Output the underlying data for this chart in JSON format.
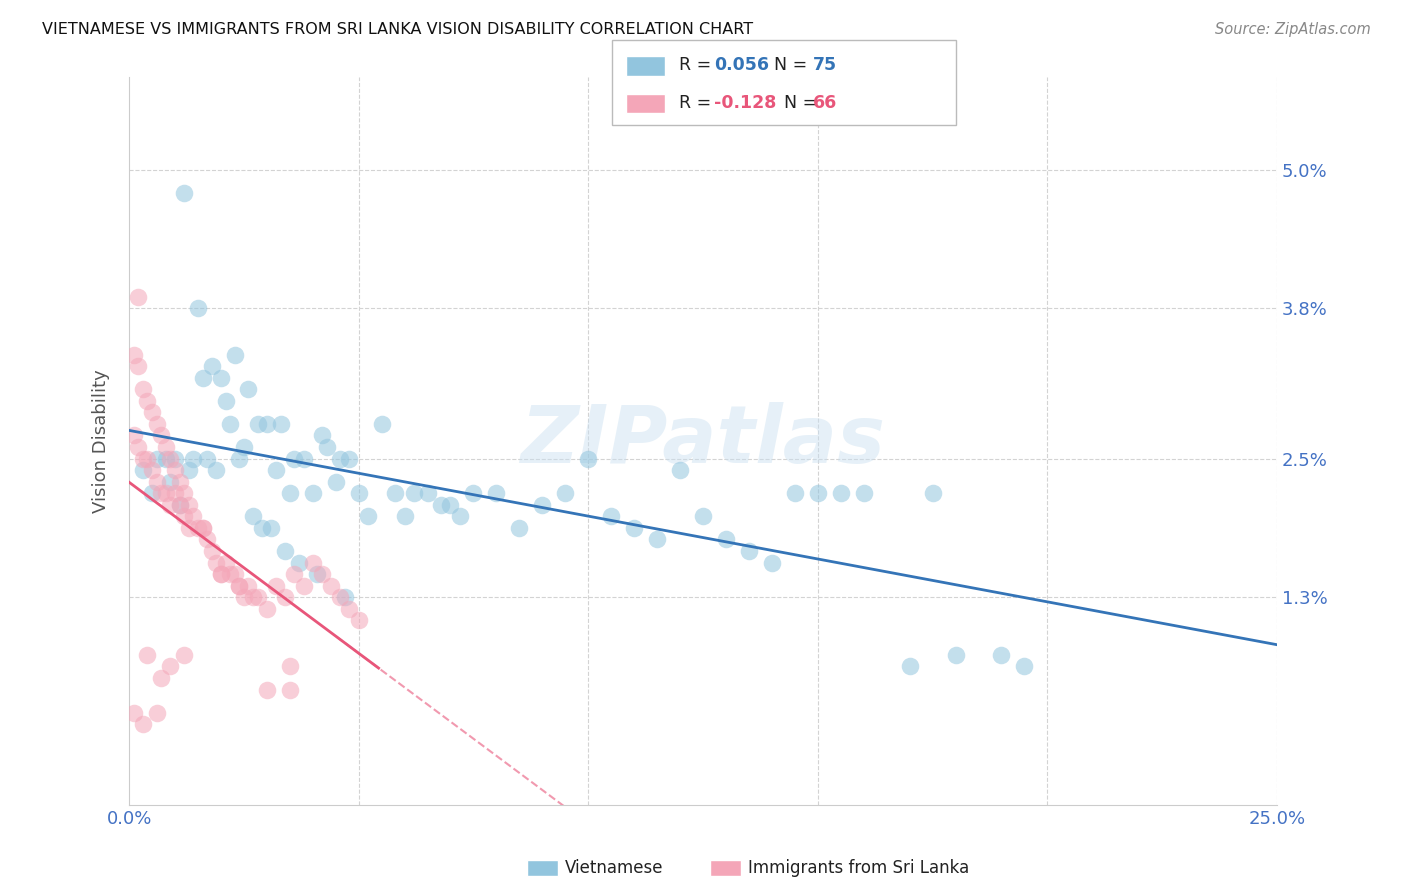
{
  "title": "VIETNAMESE VS IMMIGRANTS FROM SRI LANKA VISION DISABILITY CORRELATION CHART",
  "source": "Source: ZipAtlas.com",
  "ylabel": "Vision Disability",
  "ytick_labels": [
    "5.0%",
    "3.8%",
    "2.5%",
    "1.3%"
  ],
  "ytick_values": [
    0.05,
    0.038,
    0.025,
    0.013
  ],
  "xlim": [
    0.0,
    0.25
  ],
  "ylim": [
    -0.005,
    0.058
  ],
  "legend_r1_prefix": "R = ",
  "legend_r1_val": "0.056",
  "legend_n1_prefix": "N = ",
  "legend_n1_val": "75",
  "legend_r2_prefix": "R = ",
  "legend_r2_val": "-0.128",
  "legend_n2_prefix": "N = ",
  "legend_n2_val": "66",
  "blue_color": "#92c5de",
  "pink_color": "#f4a6b8",
  "blue_line_color": "#3474b7",
  "pink_line_color": "#e8567a",
  "watermark": "ZIPatlas",
  "viet_x": [
    0.005,
    0.008,
    0.01,
    0.012,
    0.014,
    0.015,
    0.016,
    0.018,
    0.02,
    0.021,
    0.022,
    0.023,
    0.025,
    0.026,
    0.028,
    0.03,
    0.032,
    0.033,
    0.035,
    0.036,
    0.038,
    0.04,
    0.042,
    0.043,
    0.045,
    0.046,
    0.048,
    0.05,
    0.052,
    0.055,
    0.058,
    0.06,
    0.062,
    0.065,
    0.068,
    0.07,
    0.072,
    0.075,
    0.08,
    0.085,
    0.09,
    0.095,
    0.1,
    0.105,
    0.11,
    0.115,
    0.12,
    0.125,
    0.13,
    0.135,
    0.14,
    0.145,
    0.15,
    0.155,
    0.16,
    0.17,
    0.175,
    0.18,
    0.19,
    0.195,
    0.003,
    0.006,
    0.009,
    0.011,
    0.013,
    0.017,
    0.019,
    0.024,
    0.027,
    0.029,
    0.031,
    0.034,
    0.037,
    0.041,
    0.047
  ],
  "viet_y": [
    0.022,
    0.025,
    0.025,
    0.048,
    0.025,
    0.038,
    0.032,
    0.033,
    0.032,
    0.03,
    0.028,
    0.034,
    0.026,
    0.031,
    0.028,
    0.028,
    0.024,
    0.028,
    0.022,
    0.025,
    0.025,
    0.022,
    0.027,
    0.026,
    0.023,
    0.025,
    0.025,
    0.022,
    0.02,
    0.028,
    0.022,
    0.02,
    0.022,
    0.022,
    0.021,
    0.021,
    0.02,
    0.022,
    0.022,
    0.019,
    0.021,
    0.022,
    0.025,
    0.02,
    0.019,
    0.018,
    0.024,
    0.02,
    0.018,
    0.017,
    0.016,
    0.022,
    0.022,
    0.022,
    0.022,
    0.007,
    0.022,
    0.008,
    0.008,
    0.007,
    0.024,
    0.025,
    0.023,
    0.021,
    0.024,
    0.025,
    0.024,
    0.025,
    0.02,
    0.019,
    0.019,
    0.017,
    0.016,
    0.015,
    0.013
  ],
  "sri_x": [
    0.001,
    0.001,
    0.002,
    0.002,
    0.003,
    0.003,
    0.004,
    0.004,
    0.005,
    0.005,
    0.006,
    0.006,
    0.007,
    0.007,
    0.008,
    0.008,
    0.009,
    0.009,
    0.01,
    0.01,
    0.011,
    0.011,
    0.012,
    0.012,
    0.013,
    0.013,
    0.014,
    0.015,
    0.016,
    0.017,
    0.018,
    0.019,
    0.02,
    0.021,
    0.022,
    0.023,
    0.024,
    0.025,
    0.026,
    0.027,
    0.028,
    0.03,
    0.032,
    0.034,
    0.035,
    0.036,
    0.038,
    0.04,
    0.042,
    0.044,
    0.046,
    0.048,
    0.05,
    0.002,
    0.004,
    0.007,
    0.009,
    0.012,
    0.016,
    0.02,
    0.024,
    0.03,
    0.035,
    0.001,
    0.003,
    0.006
  ],
  "sri_y": [
    0.034,
    0.027,
    0.033,
    0.026,
    0.031,
    0.025,
    0.03,
    0.025,
    0.029,
    0.024,
    0.028,
    0.023,
    0.027,
    0.022,
    0.026,
    0.022,
    0.025,
    0.021,
    0.024,
    0.022,
    0.023,
    0.021,
    0.022,
    0.02,
    0.021,
    0.019,
    0.02,
    0.019,
    0.019,
    0.018,
    0.017,
    0.016,
    0.015,
    0.016,
    0.015,
    0.015,
    0.014,
    0.013,
    0.014,
    0.013,
    0.013,
    0.012,
    0.014,
    0.013,
    0.007,
    0.015,
    0.014,
    0.016,
    0.015,
    0.014,
    0.013,
    0.012,
    0.011,
    0.039,
    0.008,
    0.006,
    0.007,
    0.008,
    0.019,
    0.015,
    0.014,
    0.005,
    0.005,
    0.003,
    0.002,
    0.003
  ]
}
